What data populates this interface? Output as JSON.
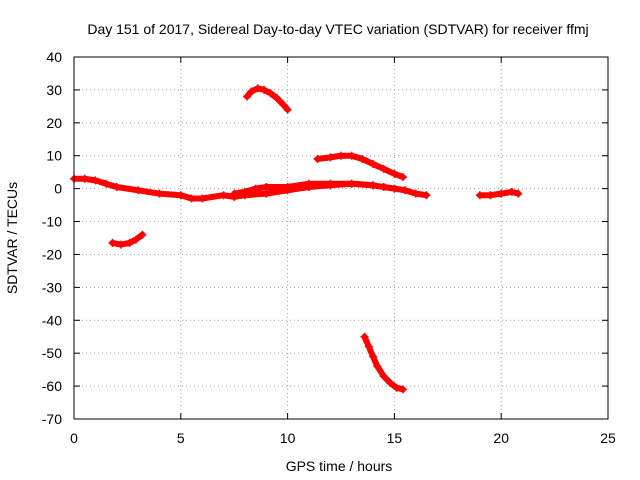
{
  "chart_data": {
    "type": "scatter",
    "title": "Day 151 of 2017, Sidereal Day-to-day VTEC variation (SDTVAR) for receiver ffmj",
    "xlabel": "GPS time / hours",
    "ylabel": "SDTVAR / TECUs",
    "xlim": [
      0,
      25
    ],
    "ylim": [
      -70,
      40
    ],
    "xticks": [
      0,
      5,
      10,
      15,
      20,
      25
    ],
    "yticks": [
      40,
      30,
      20,
      10,
      0,
      -10,
      -20,
      -30,
      -40,
      -50,
      -60,
      -70
    ],
    "grid": true,
    "legend": "none",
    "marker": "plus",
    "color": "#ff0000",
    "series": [
      {
        "name": "arc-main-low",
        "x": [
          0,
          0.5,
          1,
          1.5,
          2,
          3,
          4,
          5,
          5.5,
          6,
          7,
          7.5,
          8,
          9,
          10,
          11,
          12,
          13,
          14,
          14.5,
          15,
          15.5,
          16,
          16.5
        ],
        "y": [
          3,
          3,
          2.5,
          1.5,
          0.5,
          -0.5,
          -1.5,
          -2,
          -3,
          -3,
          -2,
          -2.5,
          -2,
          -1.5,
          -0.5,
          0.5,
          1,
          1.5,
          1,
          0.5,
          0,
          -0.5,
          -1.5,
          -2
        ]
      },
      {
        "name": "arc-main-upper",
        "x": [
          7.5,
          8,
          8.5,
          9,
          10,
          11,
          12,
          13,
          14
        ],
        "y": [
          -1.5,
          -1,
          0,
          0.5,
          0.5,
          1.5,
          1.5,
          1.5,
          1
        ]
      },
      {
        "name": "arc-high",
        "x": [
          8.1,
          8.3,
          8.6,
          8.9,
          9.2,
          9.5,
          9.8,
          10
        ],
        "y": [
          28,
          29.5,
          30.5,
          30,
          29,
          27.5,
          25.5,
          24
        ]
      },
      {
        "name": "arc-mid-high",
        "x": [
          11.4,
          12,
          12.5,
          13,
          13.5,
          14,
          14.5,
          15,
          15.4
        ],
        "y": [
          9,
          9.5,
          10,
          10,
          9,
          7.5,
          6,
          4.5,
          3.5
        ]
      },
      {
        "name": "arc-neg-17",
        "x": [
          1.8,
          2.2,
          2.6,
          2.9,
          3.2
        ],
        "y": [
          -16.5,
          -17,
          -16.5,
          -15.5,
          -14
        ]
      },
      {
        "name": "arc-deep-neg",
        "x": [
          13.6,
          13.8,
          14,
          14.2,
          14.5,
          14.8,
          15.1,
          15.4
        ],
        "y": [
          -45,
          -48,
          -51,
          -54,
          -57,
          -59,
          -60.5,
          -61
        ]
      },
      {
        "name": "arc-20h",
        "x": [
          19,
          19.5,
          20,
          20.5,
          20.8
        ],
        "y": [
          -2,
          -2,
          -1.5,
          -1,
          -1.5
        ]
      }
    ]
  }
}
